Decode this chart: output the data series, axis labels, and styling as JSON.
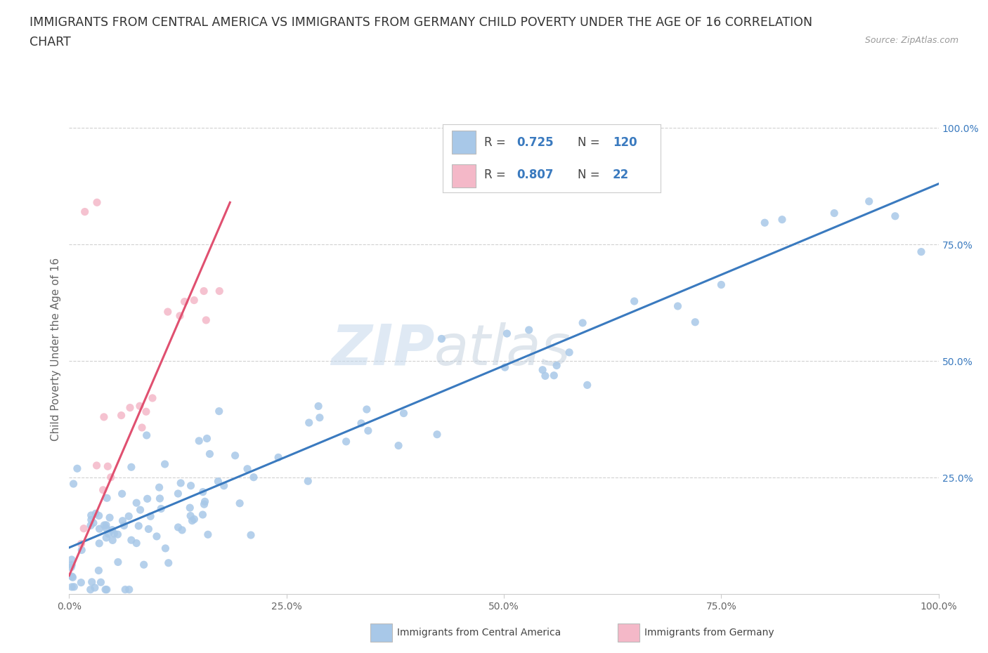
{
  "title_line1": "IMMIGRANTS FROM CENTRAL AMERICA VS IMMIGRANTS FROM GERMANY CHILD POVERTY UNDER THE AGE OF 16 CORRELATION",
  "title_line2": "CHART",
  "source": "Source: ZipAtlas.com",
  "ylabel": "Child Poverty Under the Age of 16",
  "blue_label": "Immigrants from Central America",
  "pink_label": "Immigrants from Germany",
  "blue_R": 0.725,
  "blue_N": 120,
  "pink_R": 0.807,
  "pink_N": 22,
  "blue_color": "#a8c8e8",
  "blue_line_color": "#3a7abf",
  "pink_color": "#f4b8c8",
  "pink_line_color": "#e05070",
  "legend_text_color": "#3a7abf",
  "watermark_zip": "ZIP",
  "watermark_atlas": "atlas",
  "blue_line_x0": 0.0,
  "blue_line_x1": 1.0,
  "blue_line_y0": 0.1,
  "blue_line_y1": 0.88,
  "pink_line_x0": 0.0,
  "pink_line_x1": 0.185,
  "pink_line_y0": 0.04,
  "pink_line_y1": 0.84,
  "xlim": [
    0.0,
    1.0
  ],
  "ylim": [
    0.0,
    1.05
  ],
  "xticks": [
    0.0,
    0.25,
    0.5,
    0.75,
    1.0
  ],
  "xtick_labels": [
    "0.0%",
    "25.0%",
    "50.0%",
    "75.0%",
    "100.0%"
  ],
  "yticks": [
    0.25,
    0.5,
    0.75,
    1.0
  ],
  "ytick_labels": [
    "25.0%",
    "50.0%",
    "75.0%",
    "100.0%"
  ],
  "grid_color": "#cccccc",
  "background_color": "#ffffff",
  "title_fontsize": 12.5,
  "axis_label_fontsize": 11,
  "tick_fontsize": 10,
  "legend_fontsize": 12
}
